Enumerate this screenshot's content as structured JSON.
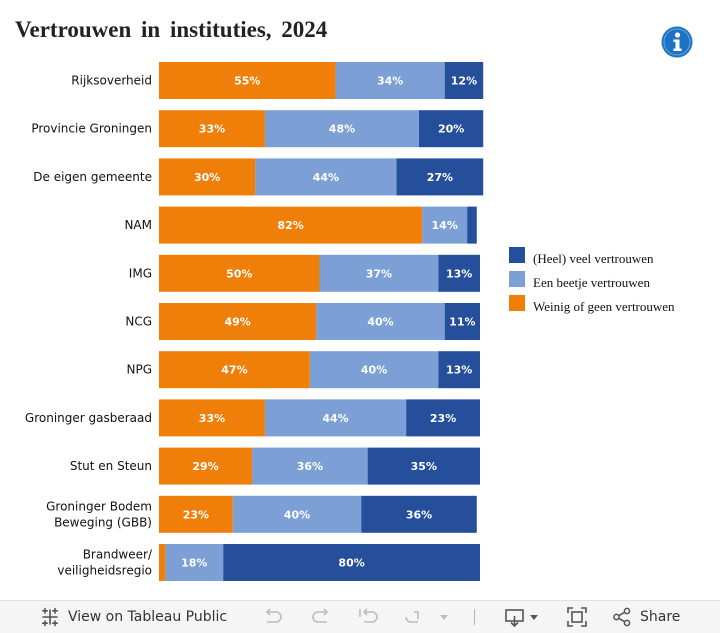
{
  "title": "Vertrouwen in instituties, 2024",
  "icons": {
    "info": "info-icon",
    "tableau": "tableau-logo-icon",
    "undo": "undo-icon",
    "redo": "redo-icon",
    "revert": "revert-icon",
    "refresh": "refresh-icon",
    "pause": "pause-dropdown-icon",
    "download": "download-icon",
    "fullscreen": "fullscreen-icon",
    "share": "share-icon"
  },
  "colors": {
    "orange": "#f07f09",
    "light_blue": "#7c9fd6",
    "dark_blue": "#254e9b",
    "info_blue": "#1c73c6"
  },
  "legend": [
    {
      "label": "(Heel) veel vertrouwen",
      "color": "#254e9b"
    },
    {
      "label": "Een beetje vertrouwen",
      "color": "#7c9fd6"
    },
    {
      "label": "Weinig of geen vertrouwen",
      "color": "#f07f09"
    }
  ],
  "chart_data": {
    "type": "bar",
    "orientation": "horizontal",
    "stacked": true,
    "title": "Vertrouwen in instituties, 2024",
    "xlim": [
      0,
      100
    ],
    "categories": [
      [
        "Rijksoverheid"
      ],
      [
        "Provincie Groningen"
      ],
      [
        "De eigen gemeente"
      ],
      [
        "NAM"
      ],
      [
        "IMG"
      ],
      [
        "NCG"
      ],
      [
        "NPG"
      ],
      [
        "Groninger gasberaad"
      ],
      [
        "Stut en Steun"
      ],
      [
        "Groninger Bodem",
        "Beweging (GBB)"
      ],
      [
        "Brandweer/",
        "veiligheidsregio"
      ]
    ],
    "series": [
      {
        "name": "Weinig of geen vertrouwen",
        "color": "#f07f09",
        "values": [
          55,
          33,
          30,
          82,
          50,
          49,
          47,
          33,
          29,
          23,
          2
        ],
        "labels": [
          "55%",
          "33%",
          "30%",
          "82%",
          "50%",
          "49%",
          "47%",
          "33%",
          "29%",
          "23%",
          ""
        ]
      },
      {
        "name": "Een beetje vertrouwen",
        "color": "#7c9fd6",
        "values": [
          34,
          48,
          44,
          14,
          37,
          40,
          40,
          44,
          36,
          40,
          18
        ],
        "labels": [
          "34%",
          "48%",
          "44%",
          "14%",
          "37%",
          "40%",
          "40%",
          "44%",
          "36%",
          "40%",
          "18%"
        ]
      },
      {
        "name": "(Heel) veel vertrouwen",
        "color": "#254e9b",
        "values": [
          12,
          20,
          27,
          3,
          13,
          11,
          13,
          23,
          35,
          36,
          80
        ],
        "labels": [
          "12%",
          "20%",
          "27%",
          "",
          "13%",
          "11%",
          "13%",
          "23%",
          "35%",
          "36%",
          "80%"
        ]
      }
    ]
  },
  "toolbar": {
    "view_on_tableau": "View on Tableau Public",
    "share": "Share"
  }
}
